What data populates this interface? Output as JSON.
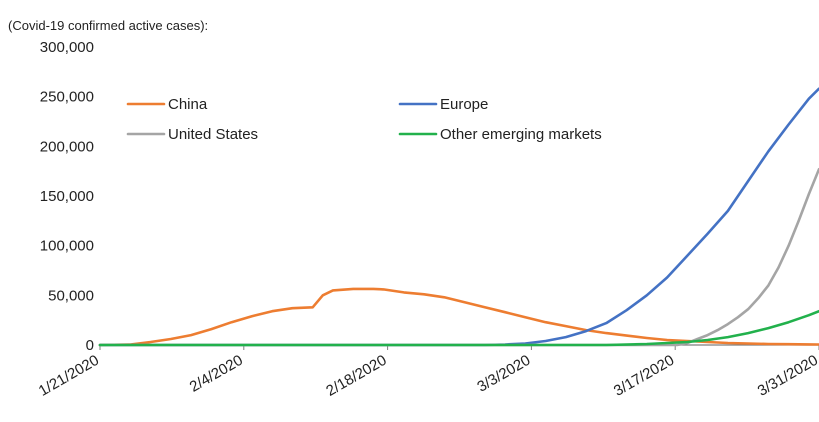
{
  "chart_data": {
    "type": "line",
    "title": "(Covid-19 confirmed active cases):",
    "xlabel": "",
    "ylabel": "",
    "x_ticks": [
      "1/21/2020",
      "2/4/2020",
      "2/18/2020",
      "3/3/2020",
      "3/17/2020",
      "3/31/2020"
    ],
    "x_range_days": [
      0,
      71
    ],
    "y_ticks": [
      "0",
      "50,000",
      "100,000",
      "150,000",
      "200,000",
      "250,000",
      "300,000"
    ],
    "ylim": [
      0,
      300000
    ],
    "grid": false,
    "legend_position": "top",
    "series": [
      {
        "name": "China",
        "color": "#ED7D31",
        "points": [
          [
            0,
            0
          ],
          [
            3,
            500
          ],
          [
            5,
            3000
          ],
          [
            7,
            6000
          ],
          [
            9,
            10000
          ],
          [
            11,
            16000
          ],
          [
            13,
            23000
          ],
          [
            15,
            29000
          ],
          [
            17,
            34000
          ],
          [
            19,
            37000
          ],
          [
            21,
            38000
          ],
          [
            22,
            50000
          ],
          [
            23,
            55000
          ],
          [
            25,
            56500
          ],
          [
            27,
            56500
          ],
          [
            28,
            56000
          ],
          [
            30,
            53000
          ],
          [
            32,
            51000
          ],
          [
            34,
            48000
          ],
          [
            36,
            43000
          ],
          [
            38,
            38000
          ],
          [
            40,
            33000
          ],
          [
            42,
            28000
          ],
          [
            44,
            23000
          ],
          [
            46,
            19000
          ],
          [
            48,
            15000
          ],
          [
            50,
            12000
          ],
          [
            52,
            9500
          ],
          [
            54,
            7000
          ],
          [
            56,
            5000
          ],
          [
            58,
            4000
          ],
          [
            60,
            3000
          ],
          [
            62,
            2000
          ],
          [
            64,
            1500
          ],
          [
            66,
            1000
          ],
          [
            68,
            800
          ],
          [
            70,
            600
          ],
          [
            71,
            500
          ]
        ]
      },
      {
        "name": "Europe",
        "color": "#4472C4",
        "points": [
          [
            0,
            0
          ],
          [
            38,
            0
          ],
          [
            40,
            500
          ],
          [
            42,
            1500
          ],
          [
            44,
            4000
          ],
          [
            46,
            8000
          ],
          [
            48,
            14000
          ],
          [
            50,
            22000
          ],
          [
            52,
            35000
          ],
          [
            54,
            50000
          ],
          [
            56,
            68000
          ],
          [
            58,
            90000
          ],
          [
            60,
            112000
          ],
          [
            62,
            135000
          ],
          [
            64,
            165000
          ],
          [
            66,
            195000
          ],
          [
            68,
            222000
          ],
          [
            70,
            248000
          ],
          [
            71,
            258000
          ]
        ]
      },
      {
        "name": "United States",
        "color": "#A5A5A5",
        "points": [
          [
            0,
            0
          ],
          [
            57,
            0
          ],
          [
            58,
            2000
          ],
          [
            59,
            6000
          ],
          [
            60,
            10000
          ],
          [
            61,
            15000
          ],
          [
            62,
            21000
          ],
          [
            63,
            28000
          ],
          [
            64,
            36000
          ],
          [
            65,
            47000
          ],
          [
            66,
            60000
          ],
          [
            67,
            78000
          ],
          [
            68,
            100000
          ],
          [
            69,
            125000
          ],
          [
            70,
            152000
          ],
          [
            71,
            177000
          ]
        ]
      },
      {
        "name": "Other emerging markets",
        "color": "#22B14C",
        "points": [
          [
            0,
            0
          ],
          [
            50,
            0
          ],
          [
            54,
            1000
          ],
          [
            58,
            3000
          ],
          [
            60,
            5000
          ],
          [
            62,
            8000
          ],
          [
            64,
            12000
          ],
          [
            66,
            17000
          ],
          [
            68,
            23000
          ],
          [
            70,
            30000
          ],
          [
            71,
            34000
          ]
        ]
      }
    ]
  }
}
